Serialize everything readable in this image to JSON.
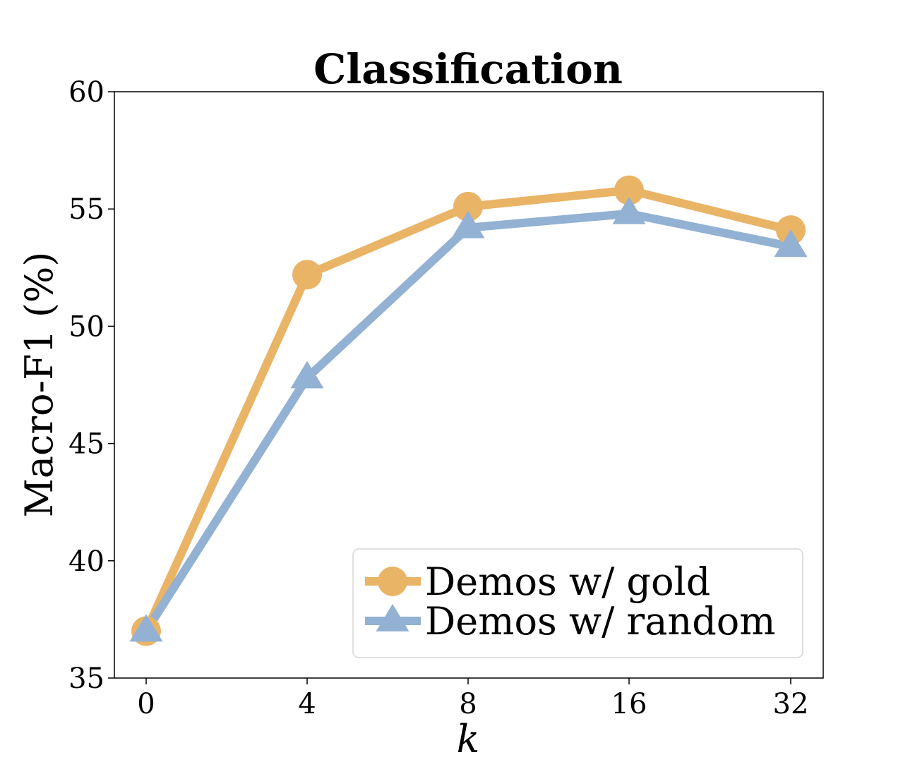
{
  "chart_data": {
    "type": "line",
    "title": "Classification",
    "xlabel": "k",
    "ylabel": "Macro-F1 (%)",
    "categories": [
      "0",
      "4",
      "8",
      "16",
      "32"
    ],
    "ylim": [
      35,
      60
    ],
    "yticks": [
      "35",
      "40",
      "45",
      "50",
      "55",
      "60"
    ],
    "grid": false,
    "legend_position": "lower-right",
    "series": [
      {
        "name": "Demos w/ gold",
        "values": [
          37.0,
          52.2,
          55.1,
          55.8,
          54.1
        ],
        "color": "#EAB467",
        "marker": "circle"
      },
      {
        "name": "Demos w/ random",
        "values": [
          37.0,
          47.8,
          54.2,
          54.8,
          53.4
        ],
        "color": "#92B1D3",
        "marker": "triangle"
      }
    ]
  }
}
